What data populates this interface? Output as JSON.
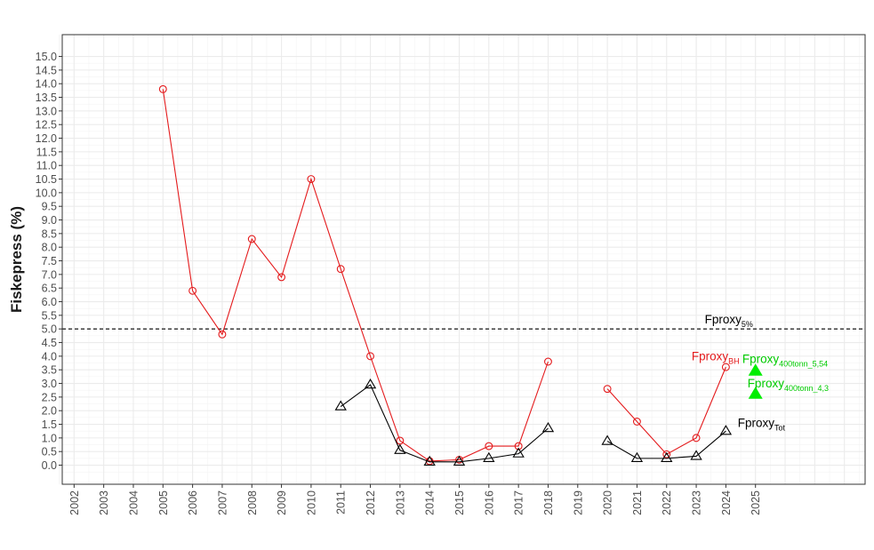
{
  "chart_data": {
    "type": "line",
    "title": "",
    "xlabel": "",
    "ylabel": "Fiskepress (%)",
    "x_ticks": [
      "2002",
      "2003",
      "2004",
      "2005",
      "2006",
      "2007",
      "2008",
      "2009",
      "2010",
      "2011",
      "2012",
      "2013",
      "2014",
      "2015",
      "2016",
      "2017",
      "2018",
      "2019",
      "2020",
      "2021",
      "2022",
      "2023",
      "2024",
      "2025"
    ],
    "xlim": [
      2001.6,
      2028.7
    ],
    "ylim": [
      -0.7,
      15.8
    ],
    "y_ticks": [
      "0.0",
      "0.5",
      "1.0",
      "1.5",
      "2.0",
      "2.5",
      "3.0",
      "3.5",
      "4.0",
      "4.5",
      "5.0",
      "5.5",
      "6.0",
      "6.5",
      "7.0",
      "7.5",
      "8.0",
      "8.5",
      "9.0",
      "9.5",
      "10.0",
      "10.5",
      "11.0",
      "11.5",
      "12.0",
      "12.5",
      "13.0",
      "13.5",
      "14.0",
      "14.5",
      "15.0"
    ],
    "grid": true,
    "series": [
      {
        "name": "Fproxy_BH",
        "color": "#e41a1c",
        "marker": "circle",
        "segments": [
          [
            [
              2005,
              13.8
            ],
            [
              2006,
              6.4
            ],
            [
              2007,
              4.8
            ],
            [
              2008,
              8.3
            ],
            [
              2009,
              6.9
            ],
            [
              2010,
              10.5
            ],
            [
              2011,
              7.2
            ],
            [
              2012,
              4.0
            ],
            [
              2013,
              0.9
            ],
            [
              2014,
              0.15
            ],
            [
              2015,
              0.2
            ],
            [
              2016,
              0.7
            ],
            [
              2017,
              0.7
            ],
            [
              2018,
              3.8
            ]
          ],
          [
            [
              2020,
              2.8
            ],
            [
              2021,
              1.6
            ],
            [
              2022,
              0.4
            ],
            [
              2023,
              1.0
            ],
            [
              2024,
              3.6
            ]
          ]
        ]
      },
      {
        "name": "Fproxy_Tot",
        "color": "#000000",
        "marker": "triangle-open",
        "segments": [
          [
            [
              2011,
              2.15
            ],
            [
              2012,
              2.95
            ],
            [
              2013,
              0.55
            ],
            [
              2014,
              0.12
            ],
            [
              2015,
              0.12
            ],
            [
              2016,
              0.25
            ],
            [
              2017,
              0.42
            ],
            [
              2018,
              1.35
            ]
          ],
          [
            [
              2020,
              0.88
            ],
            [
              2021,
              0.25
            ],
            [
              2022,
              0.25
            ],
            [
              2023,
              0.33
            ],
            [
              2024,
              1.25
            ]
          ]
        ]
      },
      {
        "name": "Fproxy_400tonn",
        "color": "#00ee00",
        "marker": "triangle-filled",
        "points": [
          [
            2025,
            3.45
          ],
          [
            2025,
            2.6
          ]
        ]
      }
    ],
    "reference_line": {
      "y": 5.0,
      "style": "dashed",
      "color": "#000000"
    },
    "annotations": [
      {
        "main": "Fproxy",
        "sub": "5%",
        "x": 2024.1,
        "y": 5.2,
        "color": "#000000"
      },
      {
        "main": "Fproxy",
        "sub": "BH",
        "x": 2023.65,
        "y": 3.85,
        "color": "#e41a1c"
      },
      {
        "main": "Fproxy",
        "sub": "400tonn_5,54",
        "x": 2026.0,
        "y": 3.75,
        "color": "#00cc00"
      },
      {
        "main": "Fproxy",
        "sub": "400tonn_4,3",
        "x": 2026.1,
        "y": 2.85,
        "color": "#00cc00"
      },
      {
        "main": "Fproxy",
        "sub": "Tot",
        "x": 2025.2,
        "y": 1.4,
        "color": "#000000"
      }
    ]
  }
}
